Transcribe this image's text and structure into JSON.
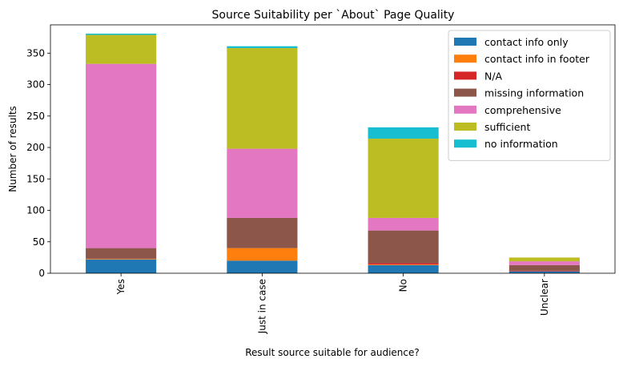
{
  "chart_data": {
    "type": "bar",
    "stacked": true,
    "title": "Source Suitability per `About` Page Quality",
    "xlabel": "Result source suitable for audience?",
    "ylabel": "Number of results",
    "categories": [
      "Yes",
      "Just in case",
      "No",
      "Unclear"
    ],
    "ylim": [
      0,
      395
    ],
    "yticks": [
      0,
      50,
      100,
      150,
      200,
      250,
      300,
      350
    ],
    "grid": false,
    "legend_position": "top-right",
    "series": [
      {
        "name": "contact info only",
        "color": "#1f77b4",
        "values": [
          22,
          20,
          13,
          3
        ]
      },
      {
        "name": "contact info in footer",
        "color": "#ff7f0e",
        "values": [
          1,
          20,
          1,
          0
        ]
      },
      {
        "name": "N/A",
        "color": "#d62728",
        "values": [
          0,
          0,
          2,
          1
        ]
      },
      {
        "name": "missing information",
        "color": "#8c564b",
        "values": [
          17,
          48,
          52,
          9
        ]
      },
      {
        "name": "comprehensive",
        "color": "#e377c2",
        "values": [
          293,
          110,
          20,
          6
        ]
      },
      {
        "name": "sufficient",
        "color": "#bcbd22",
        "values": [
          46,
          160,
          126,
          6
        ]
      },
      {
        "name": "no information",
        "color": "#17becf",
        "values": [
          2,
          3,
          18,
          0
        ]
      }
    ]
  }
}
